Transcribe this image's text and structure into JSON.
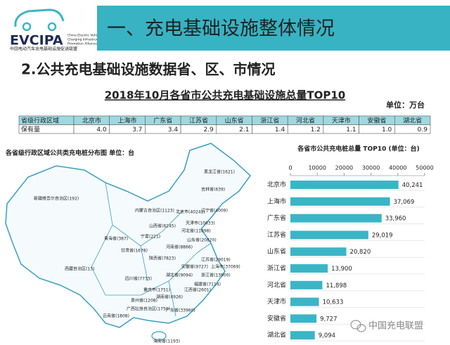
{
  "logo": {
    "name": "EVCIPA",
    "english": [
      "China Electric Vehicle",
      "Charging Infrastructure",
      "Promotion Alliance"
    ],
    "chinese": "中国电动汽车充电基础设施促进联盟"
  },
  "header": {
    "title": "一、充电基础设施整体情况"
  },
  "section": {
    "title": "2.公共充电基础设施数据省、区、市情况"
  },
  "table": {
    "title": "2018年10月各省市公共充电基础设施总量TOP10",
    "unit": "单位：万台",
    "rows": [
      [
        "省级行政区域",
        "北京市",
        "上海市",
        "广东省",
        "江苏省",
        "山东省",
        "浙江省",
        "河北省",
        "天津市",
        "安徽省",
        "湖北省"
      ],
      [
        "保有量",
        "4.0",
        "3.7",
        "3.4",
        "2.9",
        "2.1",
        "1.4",
        "1.2",
        "1.1",
        "1.0",
        "0.9"
      ]
    ]
  },
  "map": {
    "title": "各省级行政区域公共类充电桩分布图  单位：台",
    "labels": [
      "黑龙江省(1621)",
      "吉林省(639)",
      "辽宁省(4009)",
      "内蒙古自治区(1123)",
      "北京市(40241)",
      "天津市(10633)",
      "河北省(11898)",
      "山西省(6245)",
      "山东省(20820)",
      "宁夏(221)",
      "新疆维吾尔自治区(192)",
      "青海省(387)",
      "甘肃省(1678)",
      "陕西省(7823)",
      "河南省(8866)",
      "江苏省(29019)",
      "上海市(37069)",
      "浙江省(13900)",
      "湖北省(9094)",
      "安徽省(9727)",
      "西藏自治区(13)",
      "四川省(7733)",
      "重庆市(1751)",
      "湖南省(4926)",
      "江西省(2601)",
      "福建省(7114)",
      "贵州省(1208)",
      "广西壮族自治区(1750)",
      "云南省(1808)",
      "广东省(33960)",
      "海南省(1193)"
    ]
  },
  "chart_data": {
    "type": "hbar",
    "title": "各省市公共充电桩总量 TOP10   (单位：台)",
    "categories": [
      "北京市",
      "上海市",
      "广东省",
      "江苏省",
      "山东省",
      "浙江省",
      "河北省",
      "天津市",
      "安徽省",
      "湖北省"
    ],
    "values": [
      40241,
      37069,
      33960,
      29019,
      20820,
      13900,
      11898,
      10633,
      9727,
      9094
    ],
    "value_labels": [
      "40,241",
      "37,069",
      "33,960",
      "29,019",
      "20,820",
      "13,900",
      "11,898",
      "10,633",
      "9,727",
      "9,094"
    ],
    "color": "#3bb5c6",
    "xlim": [
      0,
      50000
    ],
    "xticks": [
      0,
      10000,
      20000,
      30000,
      40000,
      50000
    ]
  },
  "watermark": {
    "text": "中国充电联盟"
  }
}
